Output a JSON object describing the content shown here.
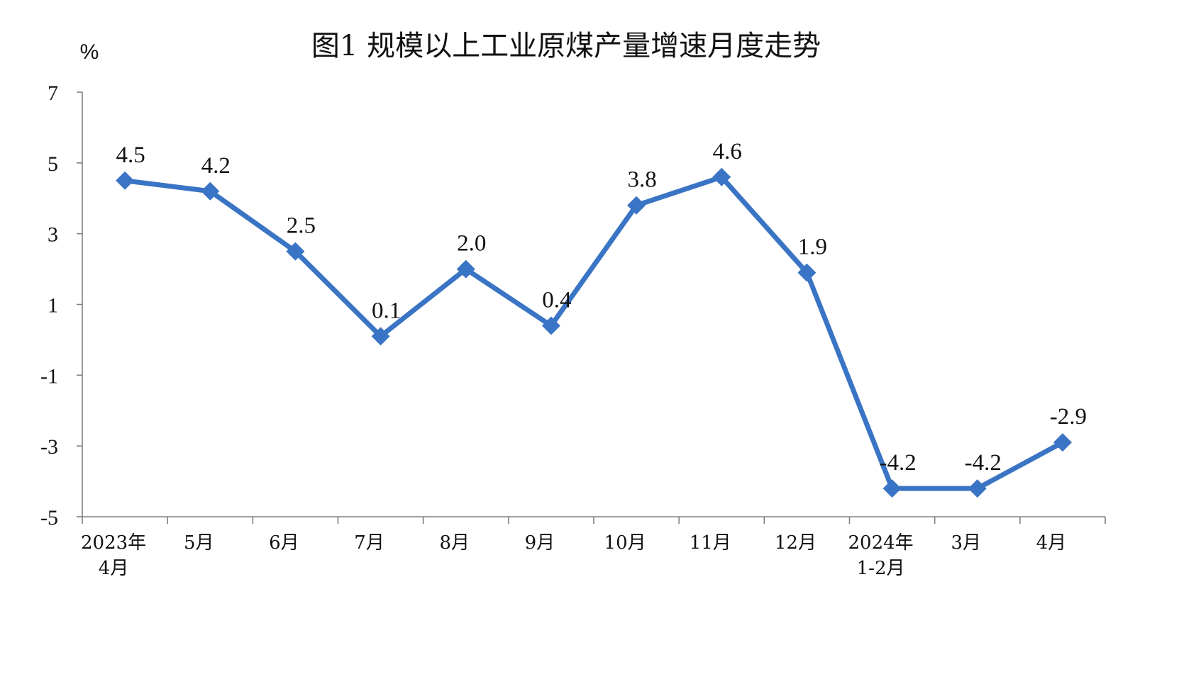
{
  "chart_data": {
    "type": "line",
    "title": "图1 规模以上工业原煤产量增速月度走势",
    "ylabel": "%",
    "xlabel": "",
    "categories": [
      "2023年\n4月",
      "5月",
      "6月",
      "7月",
      "8月",
      "9月",
      "10月",
      "11月",
      "12月",
      "2024年\n1-2月",
      "3月",
      "4月"
    ],
    "series": [
      {
        "values": [
          4.5,
          4.2,
          2.5,
          0.1,
          2.0,
          0.4,
          3.8,
          4.6,
          1.9,
          -4.2,
          -4.2,
          -2.9
        ]
      }
    ],
    "data_labels": [
      "4.5",
      "4.2",
      "2.5",
      "0.1",
      "2.0",
      "0.4",
      "3.8",
      "4.6",
      "1.9",
      "-4.2",
      "-4.2",
      "-2.9"
    ],
    "ylim": [
      -5,
      7
    ],
    "yticks": [
      7,
      5,
      3,
      1,
      -1,
      -3,
      -5
    ],
    "grid": false,
    "legend": "none",
    "colors": {
      "line": "#3A74C4",
      "axis": "#808080",
      "text": "#111111"
    }
  }
}
